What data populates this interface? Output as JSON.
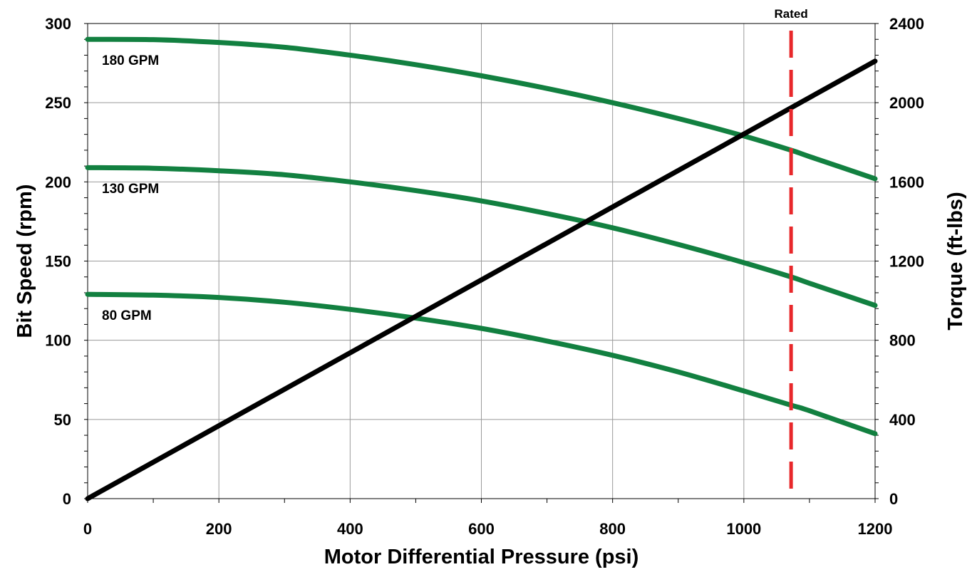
{
  "chart_data": {
    "type": "line",
    "xlabel": "Motor Differential Pressure (psi)",
    "ylabel": "Bit Speed (rpm)",
    "y2label": "Torque (ft-lbs)",
    "xlim": [
      0,
      1200
    ],
    "ylim": [
      0,
      300
    ],
    "y2lim": [
      0,
      2400
    ],
    "x_ticks": [
      "0",
      "200",
      "400",
      "600",
      "800",
      "1000",
      "1200"
    ],
    "y_ticks": [
      "0",
      "50",
      "100",
      "150",
      "200",
      "250",
      "300"
    ],
    "y2_ticks": [
      "0",
      "400",
      "800",
      "1200",
      "1600",
      "2000",
      "2400"
    ],
    "grid": true,
    "series": [
      {
        "name": "180 GPM",
        "axis": "left",
        "color": "#128040",
        "x": [
          0,
          100,
          200,
          300,
          400,
          500,
          600,
          700,
          800,
          900,
          1000,
          1072,
          1100,
          1200
        ],
        "y": [
          290,
          289.8,
          288,
          285,
          280,
          274,
          267,
          259,
          250,
          240,
          229,
          220,
          216,
          202
        ]
      },
      {
        "name": "130 GPM",
        "axis": "left",
        "color": "#128040",
        "x": [
          0,
          100,
          200,
          300,
          400,
          500,
          600,
          700,
          800,
          900,
          1000,
          1072,
          1100,
          1200
        ],
        "y": [
          209,
          208.6,
          207,
          204.5,
          200,
          194.5,
          188,
          180,
          171,
          160.5,
          149,
          140,
          136,
          122
        ]
      },
      {
        "name": "80 GPM",
        "axis": "left",
        "color": "#128040",
        "x": [
          0,
          100,
          200,
          300,
          400,
          500,
          600,
          700,
          800,
          900,
          1000,
          1072,
          1100,
          1200
        ],
        "y": [
          129,
          128.5,
          127,
          124,
          119.5,
          114,
          107.5,
          99.5,
          90.5,
          80,
          68,
          59,
          55.5,
          41
        ]
      },
      {
        "axis": "right",
        "color": "#000000",
        "x": [
          0,
          1200
        ],
        "y": [
          0,
          2210
        ]
      }
    ],
    "annotations": [
      {
        "text": "Rated",
        "x": 1072,
        "style": "dashed-vertical",
        "color": "#e8282b"
      }
    ]
  }
}
